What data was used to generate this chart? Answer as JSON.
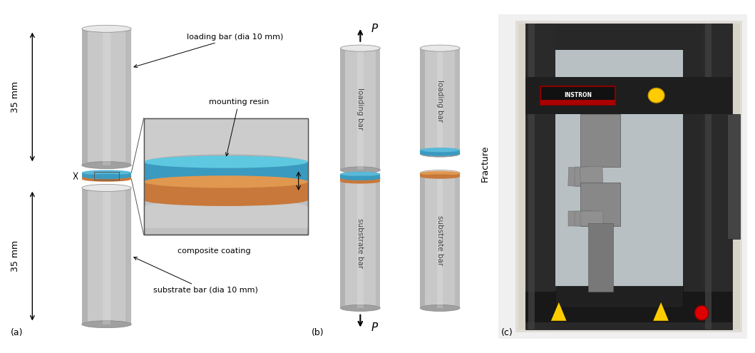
{
  "panel_a": {
    "body_col": "#c8c8c8",
    "top_col": "#e8e8e8",
    "dark_col": "#a0a0a0",
    "edge_col": "#888888",
    "coating_blue": "#3a9abf",
    "coating_orange": "#c8783a",
    "inset_bg": "#c0c0c0",
    "inset_border": "#666666",
    "label_loading": "loading bar (dia 10 mm)",
    "label_mounting": "mounting resin",
    "label_composite": "composite coating",
    "label_substrate": "substrate bar (dia 10 mm)",
    "dim_top": "35 mm",
    "dim_bot": "35 mm"
  },
  "panel_b": {
    "body_col": "#c8c8c8",
    "top_col": "#e8e8e8",
    "dark_col": "#a0a0a0",
    "coating_blue": "#3a9abf",
    "coating_orange": "#c8783a",
    "label_loading": "loading bar",
    "label_substrate": "substrate bar",
    "label_fracture": "Fracture"
  },
  "background_color": "#ffffff",
  "subplot_labels": [
    "(a)",
    "(b)",
    "(c)"
  ]
}
